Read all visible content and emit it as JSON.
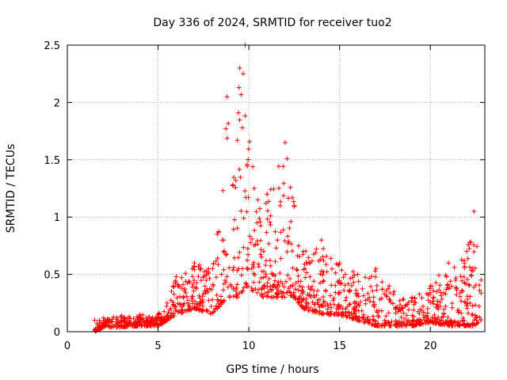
{
  "chart_data": {
    "type": "scatter",
    "title": "Day 336 of 2024, SRMTID for receiver tuo2",
    "xlabel": "GPS time / hours",
    "ylabel": "SRMTID / TECUs",
    "xlim": [
      0,
      23
    ],
    "ylim": [
      0,
      2.5
    ],
    "x_ticks": [
      0,
      5,
      10,
      15,
      20
    ],
    "x_tick_labels": [
      "0",
      "5",
      "10",
      "15",
      "20"
    ],
    "y_ticks": [
      0,
      0.5,
      1,
      1.5,
      2,
      2.5
    ],
    "y_tick_labels": [
      "0",
      "0.5",
      "1",
      "1.5",
      "2",
      "2.5"
    ],
    "grid": true,
    "legend": "none",
    "marker": "plus",
    "series": [
      {
        "name": "SRMTID",
        "color": "#ff0000",
        "envelope": [
          {
            "x": 1.5,
            "lo": 0.0,
            "hi": 0.1
          },
          {
            "x": 2.0,
            "lo": 0.04,
            "hi": 0.12
          },
          {
            "x": 3.0,
            "lo": 0.04,
            "hi": 0.14
          },
          {
            "x": 4.0,
            "lo": 0.05,
            "hi": 0.15
          },
          {
            "x": 5.0,
            "lo": 0.05,
            "hi": 0.15
          },
          {
            "x": 5.5,
            "lo": 0.1,
            "hi": 0.25
          },
          {
            "x": 6.0,
            "lo": 0.15,
            "hi": 0.48
          },
          {
            "x": 7.0,
            "lo": 0.2,
            "hi": 0.6
          },
          {
            "x": 8.0,
            "lo": 0.15,
            "hi": 0.55
          },
          {
            "x": 8.8,
            "lo": 0.3,
            "hi": 2.05
          },
          {
            "x": 9.5,
            "lo": 0.3,
            "hi": 2.3
          },
          {
            "x": 9.8,
            "lo": 0.4,
            "hi": 2.5
          },
          {
            "x": 10.5,
            "lo": 0.3,
            "hi": 1.15
          },
          {
            "x": 11.0,
            "lo": 0.3,
            "hi": 1.2
          },
          {
            "x": 12.0,
            "lo": 0.3,
            "hi": 1.65
          },
          {
            "x": 12.5,
            "lo": 0.3,
            "hi": 1.1
          },
          {
            "x": 13.0,
            "lo": 0.2,
            "hi": 0.7
          },
          {
            "x": 14.0,
            "lo": 0.15,
            "hi": 0.8
          },
          {
            "x": 15.0,
            "lo": 0.15,
            "hi": 0.6
          },
          {
            "x": 16.0,
            "lo": 0.1,
            "hi": 0.5
          },
          {
            "x": 17.0,
            "lo": 0.05,
            "hi": 0.55
          },
          {
            "x": 18.0,
            "lo": 0.05,
            "hi": 0.35
          },
          {
            "x": 19.0,
            "lo": 0.05,
            "hi": 0.3
          },
          {
            "x": 20.0,
            "lo": 0.08,
            "hi": 0.4
          },
          {
            "x": 21.0,
            "lo": 0.05,
            "hi": 0.6
          },
          {
            "x": 22.0,
            "lo": 0.05,
            "hi": 0.7
          },
          {
            "x": 22.4,
            "lo": 0.05,
            "hi": 1.05
          },
          {
            "x": 22.8,
            "lo": 0.1,
            "hi": 0.45
          }
        ]
      }
    ]
  }
}
